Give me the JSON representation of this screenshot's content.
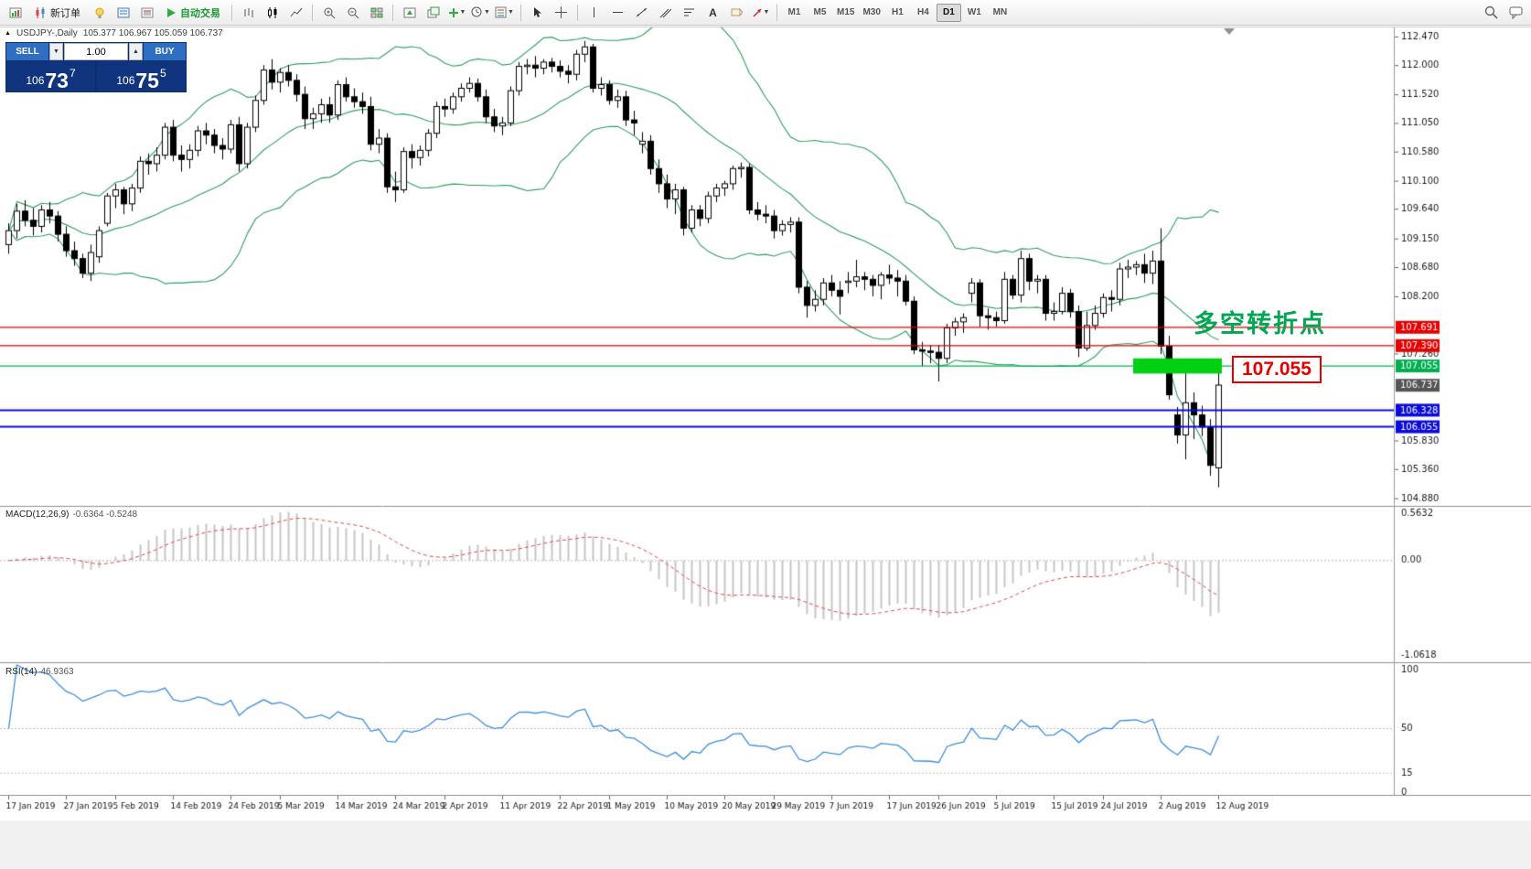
{
  "toolbar": {
    "new_order": "新订单",
    "autotrading": "自动交易",
    "timeframes": [
      "M1",
      "M5",
      "M15",
      "M30",
      "H1",
      "H4",
      "D1",
      "W1",
      "MN"
    ],
    "active_timeframe": "D1",
    "icons": [
      "app-window-icon",
      "new-order-icon",
      "lightbulb-icon",
      "market-watch-icon",
      "data-window-icon",
      "autotrading-play-icon",
      "bar-chart-icon",
      "candlestick-chart-icon",
      "line-chart-icon",
      "zoom-in-icon",
      "zoom-out-icon",
      "tile-windows-icon",
      "arrange-windows-icon",
      "cascade-windows-icon",
      "new-chart-icon",
      "periods-icon",
      "templates-icon",
      "cursor-icon",
      "crosshair-icon",
      "vertical-line-icon",
      "horizontal-line-icon",
      "trendline-icon",
      "channel-icon",
      "fibonacci-icon",
      "text-icon",
      "label-icon",
      "arrows-icon",
      "search-icon",
      "chat-icon"
    ]
  },
  "chart": {
    "collapse_marker": "▲",
    "symbol_title": "USDJPY-,Daily",
    "ohlc_text": "105.377 106.967 105.059 106.737"
  },
  "trade_panel": {
    "sell_label": "SELL",
    "buy_label": "BUY",
    "volume": "1.00",
    "sell_price": {
      "base": "106",
      "big": "73",
      "sup": "7"
    },
    "buy_price": {
      "base": "106",
      "big": "75",
      "sup": "5"
    }
  },
  "annotations": {
    "turning_point": "多空转折点",
    "turning_point_color": "#00a651",
    "zone_price_label": "107.055"
  },
  "indicators": {
    "macd_label": "MACD(12,26,9)",
    "macd_values": "-0.6364 -0.5248",
    "rsi_label": "RSI(14)",
    "rsi_value": "46.9363"
  },
  "chart_data": {
    "type": "candlestick",
    "symbol": "USDJPY",
    "timeframe": "Daily",
    "title": "USDJPY-,Daily",
    "ylim": [
      104.86,
      112.62
    ],
    "grid": false,
    "candles": [
      [
        109.05,
        109.4,
        108.9,
        109.28
      ],
      [
        109.28,
        109.72,
        109.15,
        109.6
      ],
      [
        109.6,
        109.78,
        109.35,
        109.45
      ],
      [
        109.45,
        109.65,
        109.2,
        109.35
      ],
      [
        109.35,
        109.7,
        109.25,
        109.62
      ],
      [
        109.62,
        109.75,
        109.4,
        109.52
      ],
      [
        109.52,
        109.6,
        109.1,
        109.22
      ],
      [
        109.22,
        109.35,
        108.85,
        108.95
      ],
      [
        108.95,
        109.1,
        108.7,
        108.82
      ],
      [
        108.82,
        108.9,
        108.5,
        108.58
      ],
      [
        108.58,
        109.05,
        108.45,
        108.92
      ],
      [
        108.85,
        109.35,
        108.75,
        109.28
      ],
      [
        109.4,
        109.9,
        109.35,
        109.85
      ],
      [
        109.85,
        110.05,
        109.65,
        109.95
      ],
      [
        109.95,
        110.0,
        109.55,
        109.72
      ],
      [
        109.72,
        110.05,
        109.6,
        109.98
      ],
      [
        109.98,
        110.5,
        109.9,
        110.42
      ],
      [
        110.42,
        110.55,
        110.2,
        110.38
      ],
      [
        110.38,
        110.65,
        110.25,
        110.52
      ],
      [
        110.52,
        111.05,
        110.45,
        110.98
      ],
      [
        110.98,
        111.1,
        110.42,
        110.52
      ],
      [
        110.52,
        110.68,
        110.25,
        110.45
      ],
      [
        110.45,
        110.7,
        110.3,
        110.6
      ],
      [
        110.6,
        111.0,
        110.5,
        110.92
      ],
      [
        110.92,
        111.05,
        110.7,
        110.85
      ],
      [
        110.85,
        110.95,
        110.55,
        110.68
      ],
      [
        110.68,
        110.8,
        110.45,
        110.62
      ],
      [
        110.62,
        111.1,
        110.55,
        111.02
      ],
      [
        111.02,
        111.15,
        110.25,
        110.38
      ],
      [
        110.38,
        111.05,
        110.3,
        110.98
      ],
      [
        110.98,
        111.5,
        110.9,
        111.42
      ],
      [
        111.42,
        112.0,
        111.35,
        111.92
      ],
      [
        111.92,
        112.1,
        111.6,
        111.72
      ],
      [
        111.72,
        111.95,
        111.55,
        111.88
      ],
      [
        111.88,
        112.0,
        111.65,
        111.75
      ],
      [
        111.75,
        111.85,
        111.4,
        111.52
      ],
      [
        111.52,
        111.65,
        110.95,
        111.12
      ],
      [
        111.12,
        111.3,
        110.95,
        111.2
      ],
      [
        111.2,
        111.45,
        111.05,
        111.35
      ],
      [
        111.35,
        111.48,
        111.05,
        111.18
      ],
      [
        111.18,
        111.75,
        111.1,
        111.68
      ],
      [
        111.68,
        111.8,
        111.4,
        111.48
      ],
      [
        111.48,
        111.62,
        111.3,
        111.4
      ],
      [
        111.4,
        111.55,
        111.2,
        111.32
      ],
      [
        111.32,
        111.48,
        110.6,
        110.7
      ],
      [
        110.7,
        110.95,
        110.55,
        110.8
      ],
      [
        110.8,
        110.88,
        109.9,
        110.0
      ],
      [
        110.0,
        110.25,
        109.75,
        109.95
      ],
      [
        109.95,
        110.65,
        109.9,
        110.58
      ],
      [
        110.58,
        110.7,
        110.3,
        110.48
      ],
      [
        110.48,
        110.68,
        110.35,
        110.6
      ],
      [
        110.6,
        110.95,
        110.5,
        110.88
      ],
      [
        110.88,
        111.4,
        110.8,
        111.32
      ],
      [
        111.32,
        111.45,
        111.15,
        111.28
      ],
      [
        111.28,
        111.55,
        111.2,
        111.48
      ],
      [
        111.48,
        111.7,
        111.4,
        111.62
      ],
      [
        111.62,
        111.8,
        111.55,
        111.7
      ],
      [
        111.7,
        111.78,
        111.4,
        111.48
      ],
      [
        111.48,
        111.6,
        111.05,
        111.15
      ],
      [
        111.15,
        111.28,
        110.9,
        111.0
      ],
      [
        111.0,
        111.15,
        110.85,
        111.05
      ],
      [
        111.05,
        111.65,
        111.0,
        111.58
      ],
      [
        111.58,
        112.05,
        111.5,
        111.98
      ],
      [
        111.98,
        112.1,
        111.85,
        112.0
      ],
      [
        112.0,
        112.15,
        111.8,
        111.95
      ],
      [
        111.95,
        112.1,
        111.85,
        112.05
      ],
      [
        112.05,
        112.12,
        111.88,
        111.98
      ],
      [
        111.98,
        112.08,
        111.8,
        111.9
      ],
      [
        111.9,
        112.0,
        111.7,
        111.85
      ],
      [
        111.85,
        112.25,
        111.75,
        112.18
      ],
      [
        112.18,
        112.4,
        112.05,
        112.3
      ],
      [
        112.3,
        112.35,
        111.55,
        111.62
      ],
      [
        111.62,
        111.8,
        111.5,
        111.68
      ],
      [
        111.68,
        111.75,
        111.35,
        111.42
      ],
      [
        111.42,
        111.6,
        111.3,
        111.48
      ],
      [
        111.48,
        111.58,
        111.0,
        111.1
      ],
      [
        111.1,
        111.25,
        110.85,
        111.05
      ],
      [
        110.7,
        110.9,
        110.55,
        110.75
      ],
      [
        110.75,
        110.85,
        110.2,
        110.3
      ],
      [
        110.3,
        110.45,
        109.9,
        110.05
      ],
      [
        110.05,
        110.2,
        109.65,
        109.8
      ],
      [
        109.8,
        110.05,
        109.55,
        109.95
      ],
      [
        109.95,
        110.0,
        109.2,
        109.32
      ],
      [
        109.32,
        109.7,
        109.25,
        109.62
      ],
      [
        109.62,
        109.7,
        109.35,
        109.48
      ],
      [
        109.48,
        109.92,
        109.4,
        109.85
      ],
      [
        109.85,
        110.05,
        109.75,
        109.98
      ],
      [
        109.98,
        110.1,
        109.85,
        110.05
      ],
      [
        110.05,
        110.35,
        109.95,
        110.3
      ],
      [
        110.3,
        110.4,
        110.15,
        110.32
      ],
      [
        110.32,
        110.38,
        109.55,
        109.62
      ],
      [
        109.62,
        109.75,
        109.45,
        109.55
      ],
      [
        109.55,
        109.7,
        109.4,
        109.52
      ],
      [
        109.52,
        109.62,
        109.15,
        109.28
      ],
      [
        109.28,
        109.45,
        109.2,
        109.38
      ],
      [
        109.38,
        109.5,
        109.25,
        109.42
      ],
      [
        109.42,
        109.5,
        108.25,
        108.35
      ],
      [
        108.35,
        108.45,
        107.85,
        108.05
      ],
      [
        108.05,
        108.3,
        107.95,
        108.15
      ],
      [
        108.15,
        108.5,
        108.05,
        108.42
      ],
      [
        108.42,
        108.55,
        108.2,
        108.3
      ],
      [
        108.3,
        108.45,
        107.9,
        108.2
      ],
      [
        108.45,
        108.6,
        108.25,
        108.45
      ],
      [
        108.45,
        108.8,
        108.35,
        108.52
      ],
      [
        108.52,
        108.6,
        108.3,
        108.48
      ],
      [
        108.48,
        108.55,
        108.2,
        108.38
      ],
      [
        108.38,
        108.6,
        108.15,
        108.55
      ],
      [
        108.55,
        108.72,
        108.4,
        108.5
      ],
      [
        108.5,
        108.63,
        108.2,
        108.45
      ],
      [
        108.45,
        108.55,
        108.05,
        108.12
      ],
      [
        108.12,
        108.2,
        107.25,
        107.32
      ],
      [
        107.32,
        107.45,
        107.05,
        107.3
      ],
      [
        107.3,
        107.4,
        107.1,
        107.28
      ],
      [
        107.28,
        107.4,
        106.8,
        107.18
      ],
      [
        107.18,
        107.75,
        107.1,
        107.68
      ],
      [
        107.68,
        107.85,
        107.55,
        107.78
      ],
      [
        107.78,
        107.92,
        107.6,
        107.85
      ],
      [
        108.25,
        108.5,
        108.1,
        108.42
      ],
      [
        108.42,
        108.48,
        107.7,
        107.88
      ],
      [
        107.88,
        108.0,
        107.65,
        107.85
      ],
      [
        107.85,
        107.95,
        107.7,
        107.8
      ],
      [
        107.8,
        108.6,
        107.75,
        108.48
      ],
      [
        108.48,
        108.55,
        108.15,
        108.22
      ],
      [
        108.22,
        108.95,
        108.1,
        108.82
      ],
      [
        108.82,
        108.9,
        108.3,
        108.45
      ],
      [
        108.45,
        108.55,
        108.25,
        108.48
      ],
      [
        108.48,
        108.55,
        107.8,
        107.92
      ],
      [
        107.92,
        108.1,
        107.8,
        107.95
      ],
      [
        107.95,
        108.35,
        107.9,
        108.25
      ],
      [
        108.25,
        108.32,
        107.85,
        107.95
      ],
      [
        107.95,
        108.05,
        107.2,
        107.35
      ],
      [
        107.35,
        107.95,
        107.3,
        107.72
      ],
      [
        107.72,
        108.05,
        107.65,
        107.92
      ],
      [
        107.92,
        108.25,
        107.85,
        108.18
      ],
      [
        108.18,
        108.3,
        107.95,
        108.15
      ],
      [
        108.15,
        108.75,
        108.05,
        108.65
      ],
      [
        108.65,
        108.8,
        108.5,
        108.68
      ],
      [
        108.68,
        108.78,
        108.55,
        108.72
      ],
      [
        108.72,
        108.9,
        108.42,
        108.58
      ],
      [
        108.58,
        108.95,
        108.4,
        108.78
      ],
      [
        108.78,
        109.32,
        107.25,
        107.38
      ],
      [
        107.38,
        107.55,
        106.5,
        106.58
      ],
      [
        106.25,
        106.38,
        105.78,
        105.92
      ],
      [
        105.92,
        107.0,
        105.52,
        106.45
      ],
      [
        106.45,
        106.62,
        105.85,
        106.25
      ],
      [
        106.25,
        106.4,
        105.9,
        106.05
      ],
      [
        106.05,
        106.18,
        105.25,
        105.42
      ],
      [
        105.38,
        106.97,
        105.06,
        106.74
      ]
    ],
    "x_label_indices": [
      0,
      7,
      13,
      20,
      27,
      33,
      40,
      47,
      53,
      60,
      67,
      73,
      80,
      87,
      93,
      100,
      107,
      113,
      120,
      127,
      133,
      140,
      147
    ],
    "x_labels": [
      "17 Jan 2019",
      "27 Jan 2019",
      "5 Feb 2019",
      "14 Feb 2019",
      "24 Feb 2019",
      "5 Mar 2019",
      "14 Mar 2019",
      "24 Mar 2019",
      "2 Apr 2019",
      "11 Apr 2019",
      "22 Apr 2019",
      "1 May 2019",
      "10 May 2019",
      "20 May 2019",
      "29 May 2019",
      "7 Jun 2019",
      "17 Jun 2019",
      "26 Jun 2019",
      "5 Jul 2019",
      "15 Jul 2019",
      "24 Jul 2019",
      "2 Aug 2019",
      "12 Aug 2019"
    ],
    "y_axis_labels": [
      "112.470",
      "112.000",
      "111.520",
      "111.050",
      "110.580",
      "110.100",
      "109.640",
      "109.150",
      "108.680",
      "108.200",
      "107.260",
      "105.830",
      "105.360",
      "104.880"
    ],
    "price_lines": [
      {
        "price": 107.691,
        "color": "#e60000",
        "width": 1.2
      },
      {
        "price": 107.39,
        "color": "#e60000",
        "width": 1.2
      },
      {
        "price": 107.055,
        "color": "#00b050",
        "width": 1.3
      },
      {
        "price": 106.328,
        "color": "#0a0adc",
        "width": 2
      },
      {
        "price": 106.055,
        "color": "#0a0adc",
        "width": 2
      }
    ],
    "price_badges": [
      {
        "price": 107.691,
        "label": "107.691",
        "color": "#e60000"
      },
      {
        "price": 107.39,
        "label": "107.390",
        "color": "#e60000"
      },
      {
        "price": 107.055,
        "label": "107.055",
        "color": "#00b050"
      },
      {
        "price": 106.737,
        "label": "106.737",
        "color": "#555555"
      },
      {
        "price": 106.328,
        "label": "106.328",
        "color": "#0a0adc"
      },
      {
        "price": 106.055,
        "label": "106.055",
        "color": "#0a0adc"
      }
    ],
    "current_price": 106.737,
    "green_zone": {
      "from_bar": 137,
      "to_bar": 147,
      "price_top": 107.18,
      "price_bottom": 106.93,
      "color": "#00d012"
    },
    "bollinger": {
      "period": 20,
      "deviation": 2,
      "color": "#2f9e5f"
    },
    "macd": {
      "fast": 12,
      "slow": 26,
      "signal": 9,
      "scale_max": 0.5632,
      "scale_min": -1.0618,
      "axis_labels": [
        "0.5632",
        "0.00",
        "-1.0618"
      ],
      "histogram_color": "#c6c6c6",
      "signal_color": "#e04848"
    },
    "rsi": {
      "period": 14,
      "axis_labels": [
        "100",
        "50",
        "15",
        "0"
      ],
      "levels": [
        50,
        15
      ],
      "line_color": "#3f8edc"
    }
  }
}
